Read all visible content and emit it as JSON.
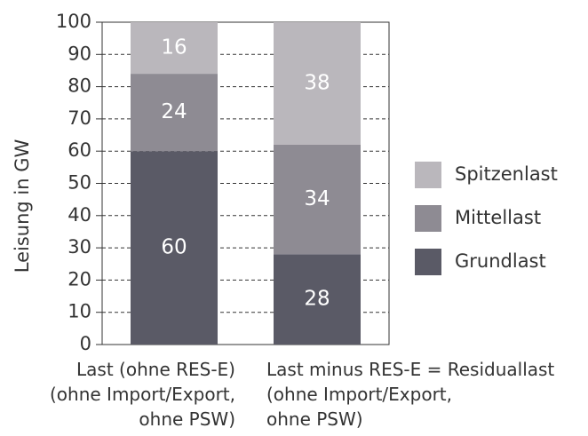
{
  "chart_data": {
    "type": "stacked_bar",
    "y_label": "Leisung in GW",
    "categories": [
      "Last (ohne RES-E)\n(ohne Import/Export,\nohne PSW)",
      "Last minus RES-E = Residuallast\n(ohne Import/Export,\nohne PSW)"
    ],
    "series": [
      {
        "name": "Grundlast",
        "color": "#5a5a66",
        "values": [
          60,
          28
        ]
      },
      {
        "name": "Mittellast",
        "color": "#8e8b93",
        "values": [
          24,
          34
        ]
      },
      {
        "name": "Spitzenlast",
        "color": "#bab7bc",
        "values": [
          16,
          38
        ]
      }
    ],
    "ylim": [
      0,
      100
    ],
    "yticks": [
      0,
      10,
      20,
      30,
      40,
      50,
      60,
      70,
      80,
      90,
      100
    ],
    "grid": true,
    "legend": "right"
  }
}
